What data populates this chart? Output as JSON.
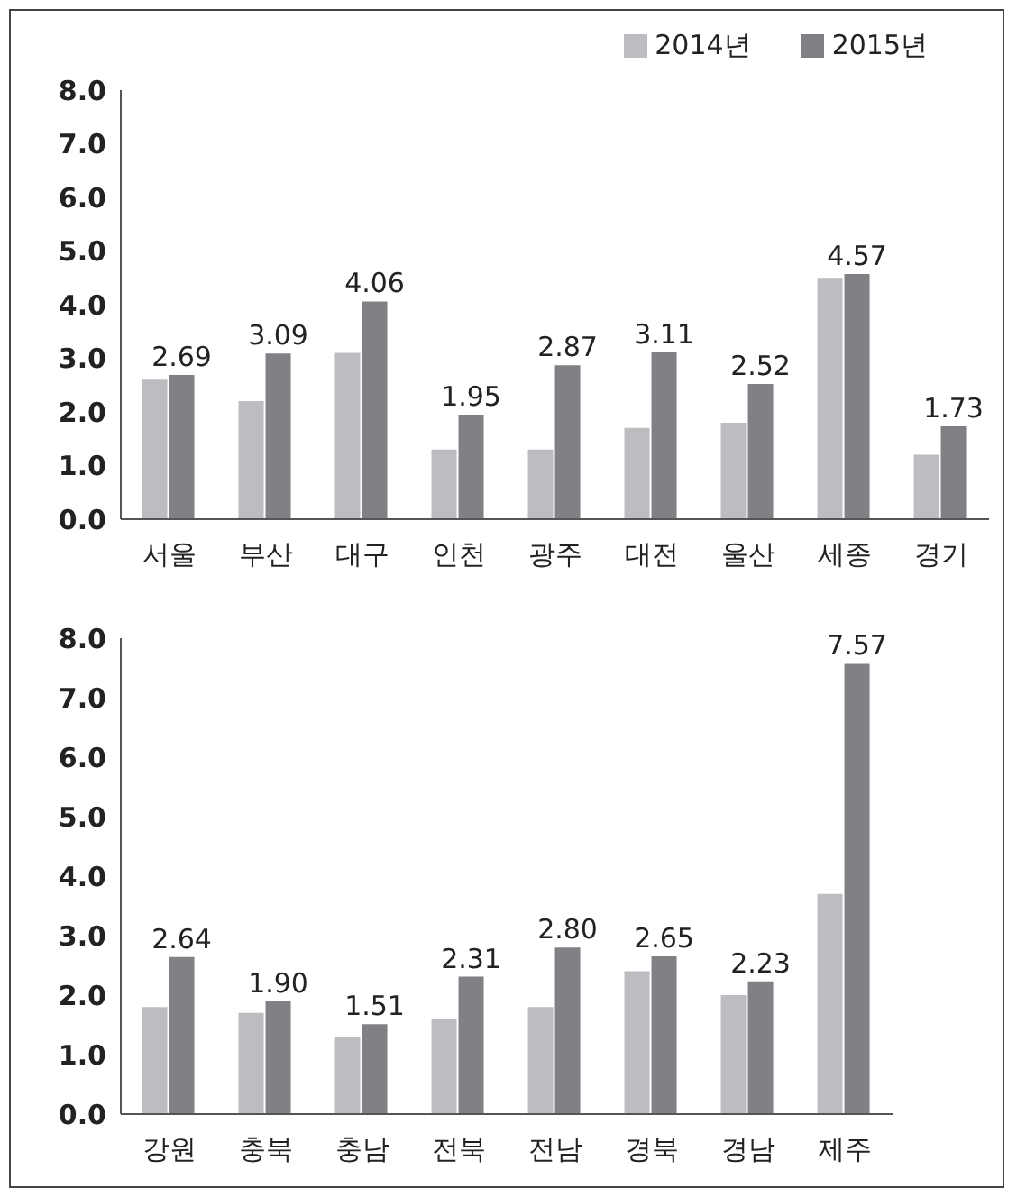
{
  "chart_data": [
    {
      "type": "bar",
      "categories": [
        "서울",
        "부산",
        "대구",
        "인천",
        "광주",
        "대전",
        "울산",
        "세종",
        "경기"
      ],
      "series": [
        {
          "name": "2014년",
          "color": "#bcbdc0",
          "values": [
            2.6,
            2.2,
            3.1,
            1.3,
            1.3,
            1.7,
            1.8,
            4.5,
            1.2
          ]
        },
        {
          "name": "2015년",
          "color": "#808184",
          "values": [
            2.69,
            3.09,
            4.06,
            1.95,
            2.87,
            3.11,
            2.52,
            4.57,
            1.73
          ],
          "value_labels": [
            "2.69",
            "3.09",
            "4.06",
            "1.95",
            "2.87",
            "3.11",
            "2.52",
            "4.57",
            "1.73"
          ]
        }
      ],
      "ylim": [
        0,
        8
      ],
      "yticks": [
        {
          "value": 0,
          "label": "0.0"
        },
        {
          "value": 1,
          "label": "1.0"
        },
        {
          "value": 2,
          "label": "2.0"
        },
        {
          "value": 3,
          "label": "3.0"
        },
        {
          "value": 4,
          "label": "4.0"
        },
        {
          "value": 5,
          "label": "5.0"
        },
        {
          "value": 6,
          "label": "6.0"
        },
        {
          "value": 7,
          "label": "7.0"
        },
        {
          "value": 8,
          "label": "8.0"
        }
      ],
      "grid": false,
      "legend": "top right"
    },
    {
      "type": "bar",
      "categories": [
        "강원",
        "충북",
        "충남",
        "전북",
        "전남",
        "경북",
        "경남",
        "제주"
      ],
      "series": [
        {
          "color": "#bcbdc0",
          "values": [
            1.8,
            1.7,
            1.3,
            1.6,
            1.8,
            2.4,
            2.0,
            3.7
          ]
        },
        {
          "color": "#808184",
          "values": [
            2.64,
            1.9,
            1.51,
            2.31,
            2.8,
            2.65,
            2.23,
            7.57
          ],
          "value_labels": [
            "2.64",
            "1.90",
            "1.51",
            "2.31",
            "2.80",
            "2.65",
            "2.23",
            "7.57"
          ]
        }
      ],
      "ylim": [
        0,
        8
      ],
      "yticks": [
        {
          "value": 0,
          "label": "0.0"
        },
        {
          "value": 1,
          "label": "1.0"
        },
        {
          "value": 2,
          "label": "2.0"
        },
        {
          "value": 3,
          "label": "3.0"
        },
        {
          "value": 4,
          "label": "4.0"
        },
        {
          "value": 5,
          "label": "5.0"
        },
        {
          "value": 6,
          "label": "6.0"
        },
        {
          "value": 7,
          "label": "7.0"
        },
        {
          "value": 8,
          "label": "8.0"
        }
      ],
      "grid": false,
      "legend": false
    }
  ]
}
